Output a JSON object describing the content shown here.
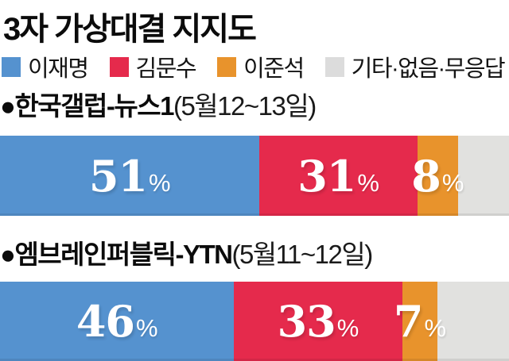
{
  "title": "3자 가상대결 지지도",
  "legend": {
    "items": [
      {
        "label": "이재명",
        "color": "#5592CF"
      },
      {
        "label": "김문수",
        "color": "#E52A4C"
      },
      {
        "label": "이준석",
        "color": "#E8932C"
      },
      {
        "label": "기타·없음·무응답",
        "color": "#DCDCDC"
      }
    ]
  },
  "polls": [
    {
      "bullet": "●",
      "source": "한국갤럽-뉴스1",
      "period": "(5월12~13일)",
      "segments": [
        {
          "candidate": "이재명",
          "value": 51,
          "label": "51",
          "unit": "%",
          "color": "#5592CF"
        },
        {
          "candidate": "김문수",
          "value": 31,
          "label": "31",
          "unit": "%",
          "color": "#E52A4C"
        },
        {
          "candidate": "이준석",
          "value": 8,
          "label": "8",
          "unit": "%",
          "color": "#E8932C"
        },
        {
          "candidate": "기타·없음·무응답",
          "value": 10,
          "label": "",
          "unit": "",
          "color": "#E1E1DF"
        }
      ]
    },
    {
      "bullet": "●",
      "source": "엠브레인퍼블릭-YTN",
      "period": "(5월11~12일)",
      "segments": [
        {
          "candidate": "이재명",
          "value": 46,
          "label": "46",
          "unit": "%",
          "color": "#5592CF"
        },
        {
          "candidate": "김문수",
          "value": 33,
          "label": "33",
          "unit": "%",
          "color": "#E52A4C"
        },
        {
          "candidate": "이준석",
          "value": 7,
          "label": "7",
          "unit": "%",
          "color": "#E8932C"
        },
        {
          "candidate": "기타·없음·무응답",
          "value": 14,
          "label": "",
          "unit": "",
          "color": "#E1E1DF"
        }
      ]
    }
  ],
  "chart_data": [
    {
      "type": "bar",
      "subtype": "horizontal-stacked-100pct",
      "title": "한국갤럽-뉴스1 (5월12~13일)",
      "categories": [
        "이재명",
        "김문수",
        "이준석",
        "기타·없음·무응답"
      ],
      "values": [
        51,
        31,
        8,
        10
      ],
      "unit": "%",
      "xlim": [
        0,
        100
      ],
      "grid": false,
      "legend_position": "top",
      "colors": [
        "#5592CF",
        "#E52A4C",
        "#E8932C",
        "#E1E1DF"
      ]
    },
    {
      "type": "bar",
      "subtype": "horizontal-stacked-100pct",
      "title": "엠브레인퍼블릭-YTN (5월11~12일)",
      "categories": [
        "이재명",
        "김문수",
        "이준석",
        "기타·없음·무응답"
      ],
      "values": [
        46,
        33,
        7,
        14
      ],
      "unit": "%",
      "xlim": [
        0,
        100
      ],
      "grid": false,
      "legend_position": "top",
      "colors": [
        "#5592CF",
        "#E52A4C",
        "#E8932C",
        "#E1E1DF"
      ]
    }
  ]
}
